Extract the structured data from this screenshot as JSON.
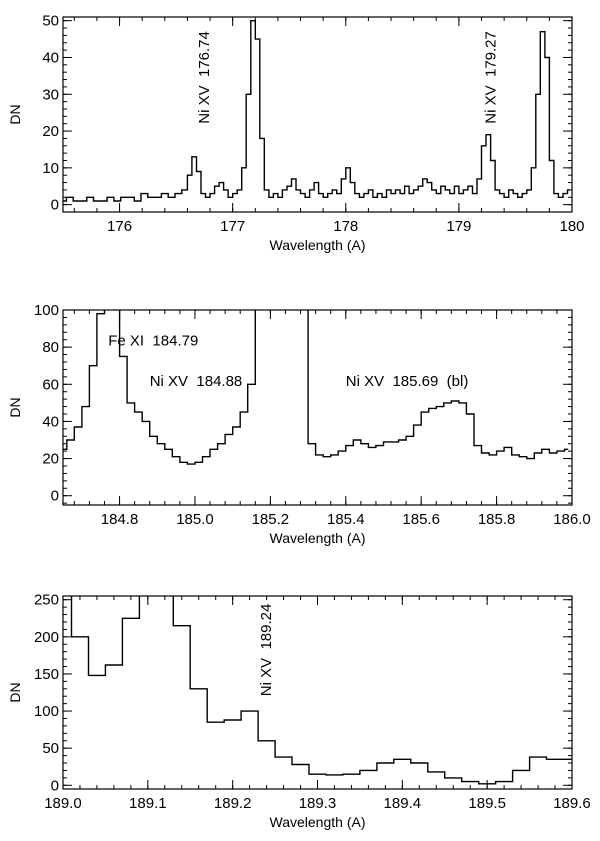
{
  "chart_data": [
    {
      "type": "line",
      "step": true,
      "xlabel": "Wavelength (A)",
      "ylabel": "DN",
      "xlim": [
        175.5,
        180.0
      ],
      "ylim": [
        -2,
        51
      ],
      "xticks": [
        176,
        177,
        178,
        179,
        180
      ],
      "xtick_labels": [
        "176",
        "177",
        "178",
        "179",
        "180"
      ],
      "yticks": [
        0,
        10,
        20,
        30,
        40,
        50
      ],
      "ytick_labels": [
        "0",
        "10",
        "20",
        "30",
        "40",
        "50"
      ],
      "annotations": [
        {
          "text": "Ni XV  176.74",
          "x": 176.74,
          "y": 22,
          "rotate": true
        },
        {
          "text": "Ni XV  179.27",
          "x": 179.27,
          "y": 22,
          "rotate": true
        }
      ],
      "series": [
        {
          "x": [
            175.5,
            175.56,
            175.62,
            175.68,
            175.74,
            175.8,
            175.86,
            175.92,
            175.98,
            176.04,
            176.1,
            176.16,
            176.22,
            176.28,
            176.34,
            176.4,
            176.46,
            176.52,
            176.58,
            176.62,
            176.66,
            176.7,
            176.74,
            176.78,
            176.82,
            176.86,
            176.9,
            176.94,
            176.98,
            177.02,
            177.06,
            177.1,
            177.14,
            177.18,
            177.22,
            177.26,
            177.3,
            177.34,
            177.38,
            177.42,
            177.46,
            177.5,
            177.54,
            177.58,
            177.62,
            177.66,
            177.7,
            177.74,
            177.78,
            177.82,
            177.86,
            177.9,
            177.94,
            177.98,
            178.02,
            178.06,
            178.1,
            178.14,
            178.18,
            178.22,
            178.26,
            178.3,
            178.34,
            178.38,
            178.42,
            178.46,
            178.5,
            178.54,
            178.58,
            178.62,
            178.66,
            178.7,
            178.74,
            178.78,
            178.82,
            178.86,
            178.9,
            178.94,
            178.98,
            179.02,
            179.06,
            179.1,
            179.14,
            179.18,
            179.22,
            179.26,
            179.3,
            179.34,
            179.38,
            179.42,
            179.46,
            179.5,
            179.54,
            179.58,
            179.62,
            179.66,
            179.7,
            179.74,
            179.78,
            179.82,
            179.86,
            179.9,
            179.94,
            179.98
          ],
          "values": [
            1,
            2,
            1,
            1,
            2,
            1,
            1,
            2,
            1,
            2,
            2,
            1,
            3,
            2,
            2,
            3,
            2,
            3,
            4,
            8,
            13,
            9,
            3,
            2,
            3,
            5,
            6,
            4,
            2,
            3,
            4,
            10,
            30,
            50,
            45,
            18,
            4,
            2,
            3,
            2,
            4,
            5,
            7,
            4,
            3,
            2,
            4,
            6,
            3,
            2,
            3,
            4,
            3,
            7,
            10,
            6,
            3,
            2,
            3,
            4,
            2,
            3,
            2,
            4,
            3,
            4,
            3,
            5,
            3,
            4,
            5,
            7,
            6,
            4,
            3,
            5,
            4,
            3,
            5,
            3,
            4,
            5,
            3,
            7,
            16,
            19,
            12,
            4,
            3,
            2,
            4,
            3,
            2,
            3,
            4,
            10,
            30,
            47,
            40,
            12,
            3,
            2,
            3,
            4
          ]
        }
      ]
    },
    {
      "type": "line",
      "step": true,
      "xlabel": "Wavelength (A)",
      "ylabel": "DN",
      "xlim": [
        184.65,
        186.0
      ],
      "ylim": [
        -5,
        100
      ],
      "xticks": [
        184.8,
        185.0,
        185.2,
        185.4,
        185.6,
        185.8,
        186.0
      ],
      "xtick_labels": [
        "184.8",
        "185.0",
        "185.2",
        "185.4",
        "185.6",
        "185.8",
        "186.0"
      ],
      "yticks": [
        0,
        20,
        40,
        60,
        80,
        100
      ],
      "ytick_labels": [
        "0",
        "20",
        "40",
        "60",
        "80",
        "100"
      ],
      "annotations": [
        {
          "text": "Fe XI  184.79",
          "x": 184.77,
          "y": 81,
          "rotate": false
        },
        {
          "text": "Ni XV  184.88",
          "x": 184.88,
          "y": 59,
          "rotate": false
        },
        {
          "text": "Ni XV  185.69  (bl)",
          "x": 185.4,
          "y": 59,
          "rotate": false
        }
      ],
      "series": [
        {
          "x": [
            184.65,
            184.67,
            184.69,
            184.71,
            184.73,
            184.75,
            184.77,
            184.79,
            184.81,
            184.83,
            184.85,
            184.87,
            184.89,
            184.91,
            184.93,
            184.95,
            184.97,
            184.99,
            185.01,
            185.03,
            185.05,
            185.07,
            185.09,
            185.11,
            185.13,
            185.15,
            185.17,
            185.19,
            185.21,
            185.23,
            185.25,
            185.27,
            185.29,
            185.31,
            185.33,
            185.35,
            185.37,
            185.39,
            185.41,
            185.43,
            185.45,
            185.47,
            185.49,
            185.51,
            185.53,
            185.55,
            185.57,
            185.59,
            185.61,
            185.63,
            185.65,
            185.67,
            185.69,
            185.71,
            185.73,
            185.75,
            185.77,
            185.79,
            185.81,
            185.83,
            185.85,
            185.87,
            185.89,
            185.91,
            185.93,
            185.95,
            185.97,
            185.99
          ],
          "values": [
            25,
            30,
            37,
            48,
            70,
            98,
            101,
            101,
            75,
            50,
            45,
            40,
            32,
            28,
            25,
            21,
            18,
            17,
            18,
            21,
            25,
            28,
            33,
            37,
            45,
            60,
            101,
            101,
            101,
            101,
            101,
            101,
            101,
            28,
            22,
            21,
            22,
            24,
            27,
            30,
            28,
            26,
            27,
            29,
            29,
            30,
            32,
            38,
            45,
            47,
            48,
            50,
            51,
            50,
            44,
            27,
            23,
            22,
            24,
            26,
            22,
            21,
            20,
            23,
            25,
            23,
            24,
            25
          ]
        }
      ]
    },
    {
      "type": "line",
      "step": true,
      "xlabel": "Wavelength (A)",
      "ylabel": "DN",
      "xlim": [
        189.0,
        189.6
      ],
      "ylim": [
        -5,
        255
      ],
      "xticks": [
        189.0,
        189.1,
        189.2,
        189.3,
        189.4,
        189.5,
        189.6
      ],
      "xtick_labels": [
        "189.0",
        "189.1",
        "189.2",
        "189.3",
        "189.4",
        "189.5",
        "189.6"
      ],
      "yticks": [
        0,
        50,
        100,
        150,
        200,
        250
      ],
      "ytick_labels": [
        "0",
        "50",
        "100",
        "150",
        "200",
        "250"
      ],
      "annotations": [
        {
          "text": "Ni XV  189.24",
          "x": 189.238,
          "y": 120,
          "rotate": true
        }
      ],
      "series": [
        {
          "x": [
            189.0,
            189.02,
            189.04,
            189.06,
            189.08,
            189.1,
            189.12,
            189.14,
            189.16,
            189.18,
            189.2,
            189.22,
            189.24,
            189.26,
            189.28,
            189.3,
            189.32,
            189.34,
            189.36,
            189.38,
            189.4,
            189.42,
            189.44,
            189.46,
            189.48,
            189.5,
            189.52,
            189.54,
            189.56,
            189.58,
            189.6
          ],
          "values": [
            258,
            200,
            148,
            162,
            225,
            258,
            258,
            215,
            130,
            85,
            88,
            100,
            60,
            38,
            28,
            15,
            14,
            15,
            20,
            30,
            35,
            30,
            18,
            10,
            5,
            2,
            5,
            20,
            38,
            35,
            35
          ]
        }
      ]
    }
  ]
}
